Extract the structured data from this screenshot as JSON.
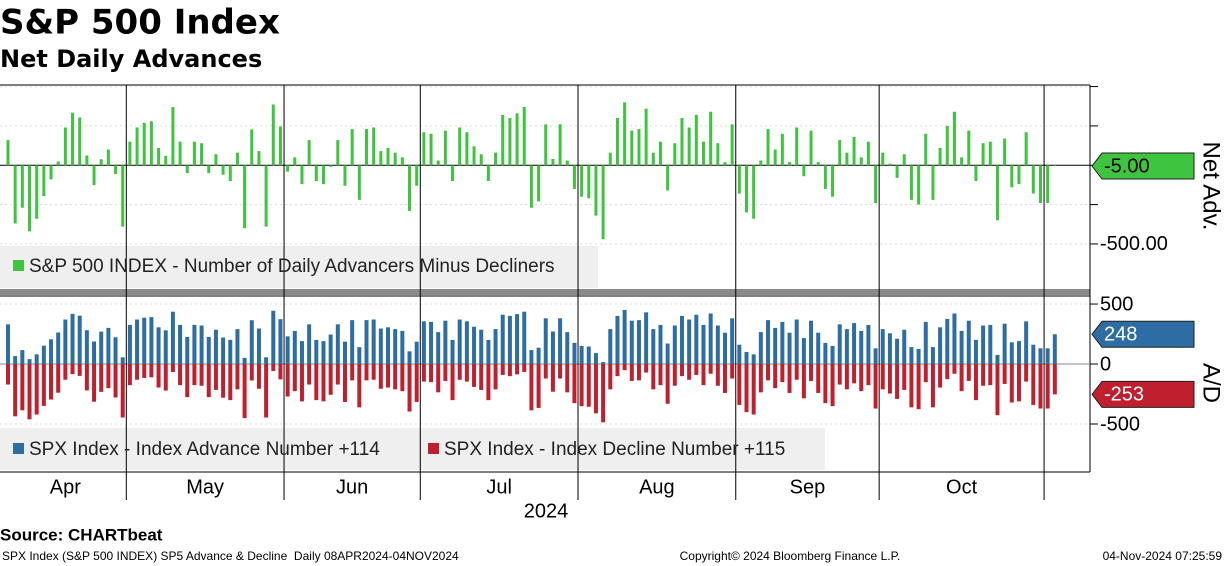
{
  "header": {
    "title": "S&P 500 Index",
    "subtitle": "Net Daily Advances"
  },
  "chart_data": {
    "type": "bar",
    "x_year": "2024",
    "months": [
      {
        "name": "Apr",
        "net": [
          160,
          -370,
          -270,
          -420,
          -340,
          -196,
          -90,
          24,
          240,
          334,
          304,
          62,
          -126,
          38,
          100,
          -56,
          -390
        ],
        "adv": [
          331,
          66,
          116,
          41,
          81,
          153,
          206,
          263,
          371,
          418,
          403,
          282,
          188,
          270,
          301,
          223,
          56
        ],
        "dec": [
          -171,
          -436,
          -386,
          -461,
          -421,
          -349,
          -296,
          -239,
          -131,
          -84,
          -99,
          -220,
          -314,
          -232,
          -201,
          -279,
          -446
        ]
      },
      {
        "name": "May",
        "net": [
          150,
          240,
          270,
          280,
          110,
          60,
          370,
          150,
          -50,
          150,
          140,
          -50,
          70,
          -60,
          -100,
          80,
          -400,
          228,
          90,
          -390,
          386,
          246
        ],
        "adv": [
          326,
          371,
          386,
          391,
          306,
          281,
          436,
          326,
          226,
          326,
          321,
          226,
          286,
          221,
          201,
          291,
          51,
          365,
          296,
          56,
          444,
          374
        ],
        "dec": [
          -176,
          -131,
          -116,
          -111,
          -196,
          -221,
          -66,
          -176,
          -276,
          -176,
          -181,
          -276,
          -216,
          -281,
          -301,
          -211,
          -451,
          -137,
          -206,
          -446,
          -58,
          -128
        ]
      },
      {
        "name": "Jun",
        "net": [
          -40,
          50,
          -120,
          160,
          -100,
          -120,
          -10,
          160,
          -130,
          230,
          -220,
          230,
          240,
          90,
          110,
          80,
          50,
          -290,
          -130
        ],
        "adv": [
          231,
          276,
          191,
          331,
          201,
          191,
          246,
          331,
          186,
          366,
          141,
          366,
          371,
          296,
          306,
          291,
          276,
          106,
          186
        ],
        "dec": [
          -271,
          -226,
          -311,
          -171,
          -301,
          -311,
          -256,
          -171,
          -316,
          -136,
          -361,
          -136,
          -131,
          -206,
          -196,
          -211,
          -226,
          -396,
          -316
        ]
      },
      {
        "name": "Jul",
        "net": [
          210,
          200,
          30,
          220,
          -100,
          240,
          210,
          120,
          70,
          -100,
          80,
          320,
          300,
          330,
          370,
          -270,
          -230,
          260,
          40,
          260,
          30,
          -150
        ],
        "adv": [
          356,
          351,
          266,
          361,
          201,
          371,
          356,
          311,
          286,
          201,
          291,
          411,
          401,
          416,
          436,
          116,
          136,
          381,
          271,
          381,
          266,
          176
        ],
        "dec": [
          -146,
          -151,
          -236,
          -141,
          -301,
          -131,
          -146,
          -191,
          -216,
          -301,
          -211,
          -91,
          -101,
          -86,
          -66,
          -386,
          -366,
          -121,
          -231,
          -121,
          -236,
          -326
        ]
      },
      {
        "name": "Aug",
        "net": [
          -200,
          -210,
          -320,
          -470,
          80,
          300,
          400,
          220,
          230,
          360,
          80,
          150,
          -160,
          140,
          300,
          240,
          320,
          150,
          340,
          140,
          20,
          260
        ],
        "adv": [
          151,
          146,
          91,
          16,
          291,
          401,
          451,
          361,
          366,
          431,
          291,
          326,
          171,
          321,
          401,
          371,
          411,
          326,
          421,
          321,
          261,
          381
        ],
        "dec": [
          -351,
          -356,
          -411,
          -486,
          -211,
          -101,
          -51,
          -141,
          -136,
          -71,
          -211,
          -176,
          -331,
          -181,
          -101,
          -131,
          -91,
          -176,
          -81,
          -181,
          -241,
          -121
        ]
      },
      {
        "name": "Sep",
        "net": [
          -180,
          -300,
          -340,
          30,
          230,
          100,
          200,
          20,
          240,
          -70,
          220,
          20,
          -150,
          -200,
          160,
          80,
          180,
          50,
          150,
          -240
        ],
        "adv": [
          161,
          101,
          81,
          266,
          366,
          301,
          351,
          261,
          371,
          216,
          361,
          261,
          176,
          151,
          331,
          291,
          341,
          276,
          326,
          131
        ],
        "dec": [
          -341,
          -401,
          -421,
          -236,
          -136,
          -201,
          -151,
          -241,
          -131,
          -286,
          -141,
          -241,
          -326,
          -351,
          -171,
          -211,
          -161,
          -226,
          -176,
          -371
        ]
      },
      {
        "name": "Oct",
        "net": [
          80,
          10,
          -80,
          70,
          -220,
          -250,
          200,
          -220,
          110,
          250,
          340,
          50,
          220,
          -100,
          140,
          150,
          -350,
          170,
          -140,
          -120,
          210,
          -180,
          -240
        ],
        "adv": [
          291,
          256,
          211,
          286,
          141,
          126,
          351,
          141,
          306,
          376,
          421,
          276,
          361,
          201,
          321,
          326,
          76,
          336,
          181,
          191,
          356,
          161,
          131
        ],
        "dec": [
          -211,
          -246,
          -291,
          -216,
          -361,
          -376,
          -151,
          -361,
          -196,
          -126,
          -81,
          -226,
          -141,
          -301,
          -181,
          -176,
          -426,
          -166,
          -321,
          -311,
          -146,
          -341,
          -371
        ]
      },
      {
        "name": null,
        "net": [
          -240,
          -5
        ],
        "adv": [
          131,
          248
        ],
        "dec": [
          -371,
          -253
        ]
      }
    ],
    "top": {
      "axis_label": "Net Adv.",
      "ylim": [
        -780,
        510
      ],
      "yticks": [
        {
          "value": -500,
          "label": "-500.00"
        }
      ],
      "minor_yticks": [
        500,
        250,
        0,
        -250
      ],
      "legend": "S&P 500 INDEX - Number of Daily Advancers Minus Decliners",
      "color": "#3ec43e",
      "last_label": "-5.00"
    },
    "bottom": {
      "axis_label": "A/D",
      "ylim": [
        -900,
        567
      ],
      "yticks": [
        500,
        0,
        -500
      ],
      "adv_name": "SPX Index - Index Advance Number +114",
      "adv_color": "#2e6da4",
      "dec_name": "SPX Index - Index Decline Number +115",
      "dec_color": "#c0202d"
    }
  },
  "footer": {
    "source": "Source: CHARTbeat",
    "left": "SPX Index (S&P 500 INDEX) SP5 Advance & Decline  Daily 08APR2024-04NOV2024",
    "center": "Copyright© 2024 Bloomberg Finance L.P.",
    "right": "04-Nov-2024 07:25:59"
  }
}
